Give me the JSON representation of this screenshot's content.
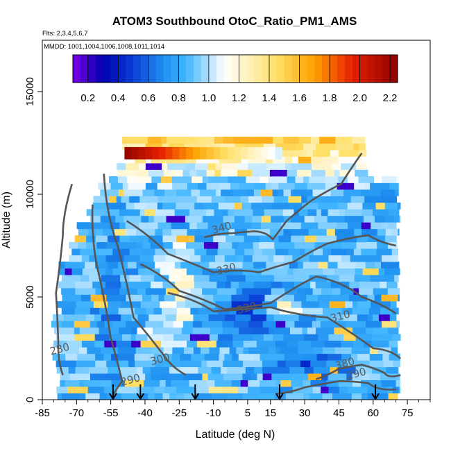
{
  "chart_data": {
    "type": "heatmap",
    "title": "ATOM3 Southbound OtoC_Ratio_PM1_AMS",
    "flights_label": "Flts: 2,3,4,5,6,7",
    "dates_label": "MMDD: 1001,1004,1006,1008,1011,1014",
    "xlabel": "Latitude (deg N)",
    "ylabel": "Altitude (m)",
    "xlim": [
      -85,
      85
    ],
    "ylim": [
      0,
      17500
    ],
    "x_ticks": [
      -85,
      -70,
      -55,
      -40,
      -25,
      -10,
      5,
      15,
      30,
      45,
      60,
      75
    ],
    "x_tick_labels": [
      "-85",
      "-70",
      "-55",
      "-40",
      "-25",
      "-10",
      "5",
      "15",
      "30",
      "45",
      "60",
      "75"
    ],
    "y_ticks": [
      0,
      5000,
      10000,
      15000
    ],
    "y_tick_labels": [
      "0",
      "5000",
      "10000",
      "15000"
    ],
    "colorbar": {
      "min": 0.1,
      "max": 2.25,
      "ticks": [
        0.2,
        0.4,
        0.6,
        0.8,
        1.0,
        1.2,
        1.4,
        1.6,
        1.8,
        2.0,
        2.2
      ],
      "tick_labels": [
        "0.2",
        "0.4",
        "0.6",
        "0.8",
        "1.0",
        "1.2",
        "1.4",
        "1.6",
        "1.8",
        "2.0",
        "2.2"
      ],
      "colors": [
        "#7a00e6",
        "#0000b0",
        "#0a3fd6",
        "#1f90f0",
        "#41b6ff",
        "#ffffff",
        "#ffe066",
        "#ffa000",
        "#e62000",
        "#8b0000"
      ]
    },
    "profile_latitudes": [
      -54,
      -42,
      -18,
      19,
      61
    ],
    "data_extent": {
      "lat_min": -79,
      "lat_max": 72,
      "alt_max": 12500
    },
    "contours": [
      {
        "label": "280",
        "label_lat": -77,
        "label_alt": 2300,
        "points": [
          [
            -76,
            1200
          ],
          [
            -78,
            2800
          ],
          [
            -79,
            5200
          ],
          [
            -76,
            8000
          ],
          [
            -72,
            10500
          ]
        ]
      },
      {
        "label": "290",
        "label_lat": -46,
        "label_alt": 800,
        "points": [
          [
            -54,
            200
          ],
          [
            -50,
            900
          ],
          [
            -55,
            3000
          ],
          [
            -60,
            6000
          ],
          [
            -63,
            9500
          ]
        ]
      },
      {
        "label": "300",
        "label_lat": -33,
        "label_alt": 1800,
        "points": [
          [
            -22,
            1200
          ],
          [
            -32,
            2200
          ],
          [
            -45,
            4000
          ],
          [
            -52,
            7500
          ],
          [
            -58,
            11000
          ]
        ]
      },
      {
        "label": "310",
        "label_lat": 46,
        "label_alt": 3900,
        "points": [
          [
            -30,
            5200
          ],
          [
            -10,
            4300
          ],
          [
            15,
            4500
          ],
          [
            40,
            4000
          ],
          [
            60,
            2500
          ],
          [
            72,
            2000
          ]
        ]
      },
      {
        "label": "320",
        "label_lat": 5,
        "label_alt": 4300,
        "points": [
          [
            -42,
            6600
          ],
          [
            -25,
            5300
          ],
          [
            -5,
            4400
          ],
          [
            15,
            4700
          ],
          [
            35,
            6000
          ],
          [
            55,
            5000
          ],
          [
            70,
            4200
          ]
        ]
      },
      {
        "label": "330",
        "label_lat": -4,
        "label_alt": 6200,
        "points": [
          [
            -48,
            8700
          ],
          [
            -30,
            7100
          ],
          [
            -10,
            6200
          ],
          [
            10,
            6200
          ],
          [
            25,
            6700
          ],
          [
            40,
            7600
          ],
          [
            58,
            8000
          ],
          [
            70,
            7500
          ]
        ]
      },
      {
        "label": "340",
        "label_lat": -6,
        "label_alt": 8200,
        "points": [
          [
            -14,
            7900
          ],
          [
            -2,
            8100
          ],
          [
            8,
            8200
          ],
          [
            16,
            7800
          ],
          [
            22,
            8700
          ],
          [
            33,
            9700
          ],
          [
            46,
            10500
          ],
          [
            55,
            12000
          ]
        ]
      },
      {
        "label": "380",
        "label_lat": 48,
        "label_alt": 1600,
        "points": [
          [
            35,
            1000
          ],
          [
            45,
            1500
          ],
          [
            55,
            1700
          ],
          [
            65,
            1300
          ],
          [
            72,
            1200
          ]
        ]
      },
      {
        "label": "290",
        "label_lat": 53,
        "label_alt": 1100,
        "points": [
          [
            18,
            300
          ],
          [
            30,
            600
          ],
          [
            45,
            900
          ],
          [
            58,
            800
          ],
          [
            70,
            500
          ]
        ]
      }
    ]
  }
}
